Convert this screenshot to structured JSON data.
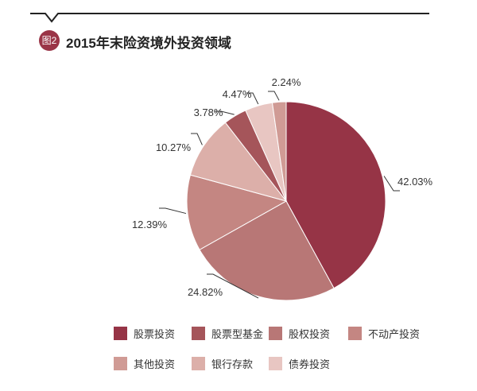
{
  "header": {
    "badge": "图2",
    "title": "2015年末险资境外投资领域"
  },
  "chart_data": {
    "type": "pie",
    "title": "2015年末险资境外投资领域",
    "legend_position": "bottom",
    "slices": [
      {
        "name": "股票投资",
        "value": 42.03,
        "label": "42.03%",
        "color": "#963446"
      },
      {
        "name": "股权投资",
        "value": 24.82,
        "label": "24.82%",
        "color": "#b87776"
      },
      {
        "name": "不动产投资",
        "value": 12.39,
        "label": "12.39%",
        "color": "#c48682"
      },
      {
        "name": "银行存款",
        "value": 10.27,
        "label": "10.27%",
        "color": "#dcafa9"
      },
      {
        "name": "股票型基金",
        "value": 3.78,
        "label": "3.78%",
        "color": "#a5555a"
      },
      {
        "name": "债券投资",
        "value": 4.47,
        "label": "4.47%",
        "color": "#e8c6c2"
      },
      {
        "name": "其他投资",
        "value": 2.24,
        "label": "2.24%",
        "color": "#d09b95"
      }
    ],
    "legend": [
      {
        "name": "股票投资",
        "color": "#963446"
      },
      {
        "name": "股票型基金",
        "color": "#a5555a"
      },
      {
        "name": "股权投资",
        "color": "#b87776"
      },
      {
        "name": "不动产投资",
        "color": "#c48682"
      },
      {
        "name": "其他投资",
        "color": "#d09b95"
      },
      {
        "name": "银行存款",
        "color": "#dcafa9"
      },
      {
        "name": "债券投资",
        "color": "#e8c6c2"
      }
    ]
  }
}
